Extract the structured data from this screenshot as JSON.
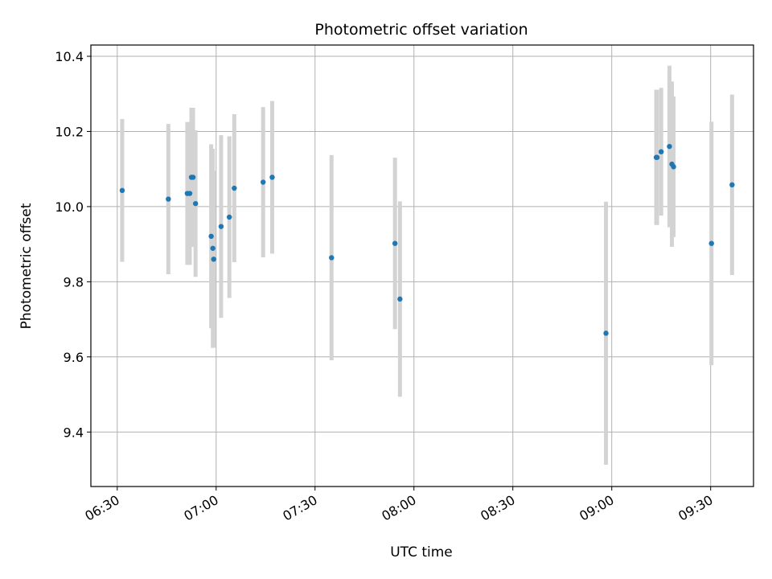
{
  "chart_data": {
    "type": "scatter",
    "title": "Photometric offset variation",
    "xlabel": "UTC time",
    "ylabel": "Photometric offset",
    "xlim": [
      "06:22",
      "09:43"
    ],
    "ylim": [
      9.255,
      10.43
    ],
    "x_ticks": [
      "06:30",
      "07:00",
      "07:30",
      "08:00",
      "08:30",
      "09:00",
      "09:30"
    ],
    "y_ticks": [
      9.4,
      9.6,
      9.8,
      10.0,
      10.2,
      10.4
    ],
    "y_tick_labels": [
      "9.4",
      "9.6",
      "9.8",
      "10.0",
      "10.2",
      "10.4"
    ],
    "grid": true,
    "marker_color": "#1f77b4",
    "errorbar_color": "#d3d3d3",
    "points": [
      {
        "x": "06:31:30",
        "y": 10.043,
        "err": 0.19
      },
      {
        "x": "06:45:30",
        "y": 10.02,
        "err": 0.2
      },
      {
        "x": "06:51:15",
        "y": 10.035,
        "err": 0.19
      },
      {
        "x": "06:52:00",
        "y": 10.035,
        "err": 0.19
      },
      {
        "x": "06:52:30",
        "y": 10.078,
        "err": 0.185
      },
      {
        "x": "06:53:00",
        "y": 10.078,
        "err": 0.185
      },
      {
        "x": "06:53:45",
        "y": 10.008,
        "err": 0.195
      },
      {
        "x": "06:58:30",
        "y": 9.921,
        "err": 0.245
      },
      {
        "x": "06:59:00",
        "y": 9.889,
        "err": 0.265
      },
      {
        "x": "06:59:15",
        "y": 9.86,
        "err": 0.235
      },
      {
        "x": "07:01:30",
        "y": 9.947,
        "err": 0.243
      },
      {
        "x": "07:04:00",
        "y": 9.972,
        "err": 0.215
      },
      {
        "x": "07:05:30",
        "y": 10.049,
        "err": 0.197
      },
      {
        "x": "07:14:15",
        "y": 10.065,
        "err": 0.2
      },
      {
        "x": "07:17:00",
        "y": 10.078,
        "err": 0.203
      },
      {
        "x": "07:35:00",
        "y": 9.864,
        "err": 0.273
      },
      {
        "x": "07:54:15",
        "y": 9.902,
        "err": 0.228
      },
      {
        "x": "07:55:45",
        "y": 9.754,
        "err": 0.26
      },
      {
        "x": "08:58:15",
        "y": 9.663,
        "err": 0.35
      },
      {
        "x": "09:13:30",
        "y": 10.131,
        "err": 0.18
      },
      {
        "x": "09:13:45",
        "y": 10.131,
        "err": 0.18
      },
      {
        "x": "09:15:00",
        "y": 10.146,
        "err": 0.17
      },
      {
        "x": "09:17:30",
        "y": 10.16,
        "err": 0.215
      },
      {
        "x": "09:18:15",
        "y": 10.113,
        "err": 0.22
      },
      {
        "x": "09:18:45",
        "y": 10.106,
        "err": 0.187
      },
      {
        "x": "09:30:15",
        "y": 9.902,
        "err": 0.324
      },
      {
        "x": "09:36:30",
        "y": 10.058,
        "err": 0.24
      }
    ]
  }
}
